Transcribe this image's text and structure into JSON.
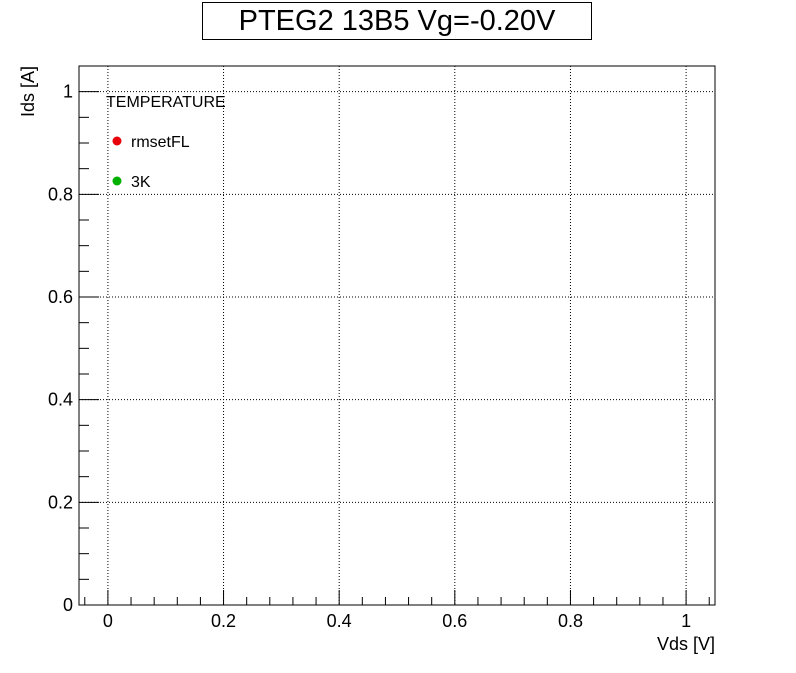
{
  "chart_data": {
    "type": "scatter",
    "title": "PTEG2 13B5 Vg=-0.20V",
    "xlabel": "Vds [V]",
    "ylabel": "Ids [A]",
    "xlim": [
      -0.05,
      1.05
    ],
    "ylim": [
      0,
      1.05
    ],
    "x_ticks": [
      0,
      0.2,
      0.4,
      0.6,
      0.8,
      1
    ],
    "x_tick_labels": [
      "0",
      "0.2",
      "0.4",
      "0.6",
      "0.8",
      "1"
    ],
    "y_ticks": [
      0,
      0.2,
      0.4,
      0.6,
      0.8,
      1
    ],
    "y_tick_labels": [
      "0",
      "0.2",
      "0.4",
      "0.6",
      "0.8",
      "1"
    ],
    "grid": true,
    "legend": {
      "title": "TEMPERATURE",
      "placement": "top-left",
      "entries": [
        {
          "label": "rmsetFL",
          "color": "#e8000b"
        },
        {
          "label": "3K",
          "color": "#00b000"
        }
      ]
    },
    "series": []
  }
}
